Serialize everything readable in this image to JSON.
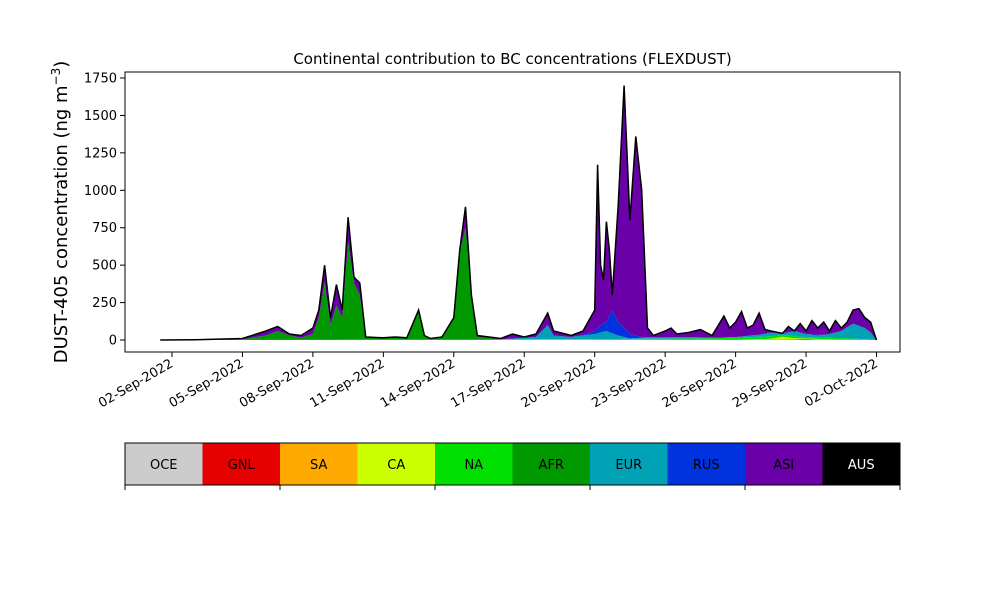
{
  "chart_data": {
    "type": "area",
    "stacked": true,
    "title": "Continental contribution to BC concentrations (FLEXDUST)",
    "ylabel_main": "DUST-405 concentration (ng m",
    "ylabel_sup": "−3",
    "ylabel_close": ")",
    "ylim": [
      -80,
      1790
    ],
    "yticks": [
      0,
      250,
      500,
      750,
      1000,
      1250,
      1500,
      1750
    ],
    "ytick_labels": [
      "0",
      "250",
      "500",
      "750",
      "1000",
      "1250",
      "1500",
      "1750"
    ],
    "xlim": [
      "2022-08-31",
      "2022-10-03"
    ],
    "xticks": [
      "2022-09-02",
      "2022-09-05",
      "2022-09-08",
      "2022-09-11",
      "2022-09-14",
      "2022-09-17",
      "2022-09-20",
      "2022-09-23",
      "2022-09-26",
      "2022-09-29",
      "2022-10-02"
    ],
    "xtick_labels": [
      "02-Sep-2022",
      "05-Sep-2022",
      "08-Sep-2022",
      "11-Sep-2022",
      "14-Sep-2022",
      "17-Sep-2022",
      "20-Sep-2022",
      "23-Sep-2022",
      "26-Sep-2022",
      "29-Sep-2022",
      "02-Oct-2022"
    ],
    "series": [
      {
        "name": "OCE",
        "color": "#cccccc",
        "text_color": "#000000",
        "points": [
          [
            "2022-09-01T12:00",
            0
          ],
          [
            "2022-10-02T00:00",
            0
          ]
        ]
      },
      {
        "name": "GNL",
        "color": "#e60000",
        "text_color": "#000000",
        "points": [
          [
            "2022-09-01T12:00",
            0
          ],
          [
            "2022-09-24T00:00",
            0
          ],
          [
            "2022-09-28T00:00",
            2
          ],
          [
            "2022-09-29T00:00",
            4
          ],
          [
            "2022-09-29T12:00",
            2
          ],
          [
            "2022-10-02T00:00",
            0
          ]
        ]
      },
      {
        "name": "SA",
        "color": "#ffaa00",
        "text_color": "#000000",
        "points": [
          [
            "2022-09-01T12:00",
            0
          ],
          [
            "2022-09-26T00:00",
            0
          ],
          [
            "2022-09-28T00:00",
            4
          ],
          [
            "2022-09-29T00:00",
            6
          ],
          [
            "2022-09-30T00:00",
            3
          ],
          [
            "2022-10-02T00:00",
            0
          ]
        ]
      },
      {
        "name": "CA",
        "color": "#ccff00",
        "text_color": "#000000",
        "points": [
          [
            "2022-09-01T12:00",
            0
          ],
          [
            "2022-09-26T00:00",
            2
          ],
          [
            "2022-09-27T12:00",
            8
          ],
          [
            "2022-09-28T00:00",
            22
          ],
          [
            "2022-09-28T12:00",
            12
          ],
          [
            "2022-09-29T00:00",
            10
          ],
          [
            "2022-09-30T00:00",
            5
          ],
          [
            "2022-10-02T00:00",
            0
          ]
        ]
      },
      {
        "name": "NA",
        "color": "#00e000",
        "text_color": "#000000",
        "points": [
          [
            "2022-09-01T12:00",
            0
          ],
          [
            "2022-09-15T00:00",
            2
          ],
          [
            "2022-09-18T00:00",
            5
          ],
          [
            "2022-09-20T00:00",
            6
          ],
          [
            "2022-09-22T00:00",
            8
          ],
          [
            "2022-09-24T00:00",
            10
          ],
          [
            "2022-09-26T00:00",
            15
          ],
          [
            "2022-09-27T12:00",
            25
          ],
          [
            "2022-09-28T00:00",
            35
          ],
          [
            "2022-09-28T12:00",
            25
          ],
          [
            "2022-09-29T00:00",
            20
          ],
          [
            "2022-09-30T00:00",
            15
          ],
          [
            "2022-10-01T00:00",
            10
          ],
          [
            "2022-10-02T00:00",
            0
          ]
        ]
      },
      {
        "name": "AFR",
        "color": "#009900",
        "text_color": "#000000",
        "points": [
          [
            "2022-09-01T12:00",
            0
          ],
          [
            "2022-09-03T00:00",
            2
          ],
          [
            "2022-09-05T00:00",
            5
          ],
          [
            "2022-09-06T00:00",
            30
          ],
          [
            "2022-09-06T12:00",
            60
          ],
          [
            "2022-09-07T00:00",
            30
          ],
          [
            "2022-09-07T12:00",
            15
          ],
          [
            "2022-09-08T00:00",
            40
          ],
          [
            "2022-09-08T06:00",
            150
          ],
          [
            "2022-09-08T12:00",
            380
          ],
          [
            "2022-09-08T18:00",
            100
          ],
          [
            "2022-09-09T00:00",
            230
          ],
          [
            "2022-09-09T06:00",
            150
          ],
          [
            "2022-09-09T12:00",
            650
          ],
          [
            "2022-09-09T18:00",
            380
          ],
          [
            "2022-09-10T00:00",
            300
          ],
          [
            "2022-09-10T06:00",
            20
          ],
          [
            "2022-09-11T00:00",
            15
          ],
          [
            "2022-09-11T12:00",
            20
          ],
          [
            "2022-09-12T00:00",
            15
          ],
          [
            "2022-09-12T12:00",
            200
          ],
          [
            "2022-09-12T18:00",
            30
          ],
          [
            "2022-09-13T00:00",
            10
          ],
          [
            "2022-09-13T12:00",
            20
          ],
          [
            "2022-09-14T00:00",
            150
          ],
          [
            "2022-09-14T06:00",
            580
          ],
          [
            "2022-09-14T12:00",
            750
          ],
          [
            "2022-09-14T18:00",
            300
          ],
          [
            "2022-09-15T00:00",
            20
          ],
          [
            "2022-09-16T00:00",
            5
          ],
          [
            "2022-09-17T00:00",
            3
          ],
          [
            "2022-09-18T00:00",
            5
          ],
          [
            "2022-09-20T00:00",
            5
          ],
          [
            "2022-09-22T00:00",
            5
          ],
          [
            "2022-09-24T00:00",
            5
          ],
          [
            "2022-09-26T00:00",
            5
          ],
          [
            "2022-09-28T00:00",
            5
          ],
          [
            "2022-10-02T00:00",
            0
          ]
        ]
      },
      {
        "name": "EUR",
        "color": "#00a3b5",
        "text_color": "#000000",
        "points": [
          [
            "2022-09-01T12:00",
            0
          ],
          [
            "2022-09-10T00:00",
            5
          ],
          [
            "2022-09-12T00:00",
            3
          ],
          [
            "2022-09-14T00:00",
            10
          ],
          [
            "2022-09-16T00:00",
            5
          ],
          [
            "2022-09-16T12:00",
            10
          ],
          [
            "2022-09-17T12:00",
            20
          ],
          [
            "2022-09-18T00:00",
            100
          ],
          [
            "2022-09-18T06:00",
            30
          ],
          [
            "2022-09-19T00:00",
            20
          ],
          [
            "2022-09-20T00:00",
            40
          ],
          [
            "2022-09-20T12:00",
            60
          ],
          [
            "2022-09-21T00:00",
            30
          ],
          [
            "2022-09-21T12:00",
            10
          ],
          [
            "2022-09-22T00:00",
            15
          ],
          [
            "2022-09-24T00:00",
            20
          ],
          [
            "2022-09-25T00:00",
            15
          ],
          [
            "2022-09-26T00:00",
            20
          ],
          [
            "2022-09-27T00:00",
            35
          ],
          [
            "2022-09-27T12:00",
            50
          ],
          [
            "2022-09-28T00:00",
            45
          ],
          [
            "2022-09-28T12:00",
            60
          ],
          [
            "2022-09-29T00:00",
            40
          ],
          [
            "2022-09-29T12:00",
            30
          ],
          [
            "2022-09-30T00:00",
            40
          ],
          [
            "2022-09-30T12:00",
            60
          ],
          [
            "2022-10-01T00:00",
            110
          ],
          [
            "2022-10-01T12:00",
            80
          ],
          [
            "2022-10-01T18:00",
            50
          ],
          [
            "2022-10-02T00:00",
            0
          ]
        ]
      },
      {
        "name": "RUS",
        "color": "#0033dd",
        "text_color": "#000000",
        "points": [
          [
            "2022-09-01T12:00",
            0
          ],
          [
            "2022-09-16T00:00",
            5
          ],
          [
            "2022-09-18T00:00",
            10
          ],
          [
            "2022-09-19T00:00",
            10
          ],
          [
            "2022-09-20T00:00",
            60
          ],
          [
            "2022-09-20T06:00",
            100
          ],
          [
            "2022-09-20T12:00",
            120
          ],
          [
            "2022-09-20T18:00",
            200
          ],
          [
            "2022-09-21T00:00",
            120
          ],
          [
            "2022-09-21T12:00",
            40
          ],
          [
            "2022-09-22T00:00",
            20
          ],
          [
            "2022-09-23T00:00",
            15
          ],
          [
            "2022-09-24T00:00",
            15
          ],
          [
            "2022-09-25T00:00",
            10
          ],
          [
            "2022-09-26T00:00",
            10
          ],
          [
            "2022-09-27T00:00",
            15
          ],
          [
            "2022-09-28T00:00",
            20
          ],
          [
            "2022-09-29T00:00",
            40
          ],
          [
            "2022-09-30T00:00",
            30
          ],
          [
            "2022-10-01T00:00",
            60
          ],
          [
            "2022-10-01T12:00",
            50
          ],
          [
            "2022-10-02T00:00",
            0
          ]
        ]
      },
      {
        "name": "ASI",
        "color": "#6a00a8",
        "text_color": "#000000",
        "points": [
          [
            "2022-09-01T12:00",
            0
          ],
          [
            "2022-09-03T00:00",
            2
          ],
          [
            "2022-09-05T00:00",
            10
          ],
          [
            "2022-09-06T00:00",
            60
          ],
          [
            "2022-09-06T12:00",
            90
          ],
          [
            "2022-09-07T00:00",
            40
          ],
          [
            "2022-09-07T12:00",
            30
          ],
          [
            "2022-09-08T00:00",
            80
          ],
          [
            "2022-09-08T06:00",
            200
          ],
          [
            "2022-09-08T12:00",
            500
          ],
          [
            "2022-09-08T18:00",
            150
          ],
          [
            "2022-09-09T00:00",
            370
          ],
          [
            "2022-09-09T06:00",
            200
          ],
          [
            "2022-09-09T12:00",
            820
          ],
          [
            "2022-09-09T18:00",
            420
          ],
          [
            "2022-09-10T00:00",
            380
          ],
          [
            "2022-09-10T06:00",
            20
          ],
          [
            "2022-09-11T00:00",
            15
          ],
          [
            "2022-09-11T12:00",
            20
          ],
          [
            "2022-09-12T00:00",
            15
          ],
          [
            "2022-09-12T12:00",
            200
          ],
          [
            "2022-09-12T18:00",
            30
          ],
          [
            "2022-09-13T00:00",
            10
          ],
          [
            "2022-09-13T12:00",
            20
          ],
          [
            "2022-09-14T00:00",
            150
          ],
          [
            "2022-09-14T06:00",
            600
          ],
          [
            "2022-09-14T12:00",
            890
          ],
          [
            "2022-09-14T18:00",
            300
          ],
          [
            "2022-09-15T00:00",
            30
          ],
          [
            "2022-09-16T00:00",
            10
          ],
          [
            "2022-09-16T12:00",
            40
          ],
          [
            "2022-09-17T00:00",
            20
          ],
          [
            "2022-09-17T12:00",
            40
          ],
          [
            "2022-09-18T00:00",
            180
          ],
          [
            "2022-09-18T06:00",
            60
          ],
          [
            "2022-09-18T12:00",
            50
          ],
          [
            "2022-09-19T00:00",
            30
          ],
          [
            "2022-09-19T12:00",
            60
          ],
          [
            "2022-09-20T00:00",
            200
          ],
          [
            "2022-09-20T03:00",
            1170
          ],
          [
            "2022-09-20T06:00",
            500
          ],
          [
            "2022-09-20T09:00",
            400
          ],
          [
            "2022-09-20T12:00",
            790
          ],
          [
            "2022-09-20T15:00",
            600
          ],
          [
            "2022-09-20T18:00",
            300
          ],
          [
            "2022-09-21T00:00",
            900
          ],
          [
            "2022-09-21T06:00",
            1700
          ],
          [
            "2022-09-21T12:00",
            800
          ],
          [
            "2022-09-21T18:00",
            1360
          ],
          [
            "2022-09-22T00:00",
            1000
          ],
          [
            "2022-09-22T06:00",
            80
          ],
          [
            "2022-09-22T12:00",
            30
          ],
          [
            "2022-09-23T00:00",
            60
          ],
          [
            "2022-09-23T06:00",
            80
          ],
          [
            "2022-09-23T12:00",
            40
          ],
          [
            "2022-09-24T00:00",
            50
          ],
          [
            "2022-09-24T12:00",
            70
          ],
          [
            "2022-09-25T00:00",
            30
          ],
          [
            "2022-09-25T12:00",
            160
          ],
          [
            "2022-09-25T18:00",
            80
          ],
          [
            "2022-09-26T00:00",
            120
          ],
          [
            "2022-09-26T06:00",
            190
          ],
          [
            "2022-09-26T12:00",
            80
          ],
          [
            "2022-09-26T18:00",
            100
          ],
          [
            "2022-09-27T00:00",
            180
          ],
          [
            "2022-09-27T06:00",
            70
          ],
          [
            "2022-09-27T12:00",
            60
          ],
          [
            "2022-09-28T00:00",
            40
          ],
          [
            "2022-09-28T06:00",
            90
          ],
          [
            "2022-09-28T12:00",
            50
          ],
          [
            "2022-09-28T18:00",
            110
          ],
          [
            "2022-09-29T00:00",
            60
          ],
          [
            "2022-09-29T06:00",
            130
          ],
          [
            "2022-09-29T12:00",
            80
          ],
          [
            "2022-09-29T18:00",
            120
          ],
          [
            "2022-09-30T00:00",
            60
          ],
          [
            "2022-09-30T06:00",
            130
          ],
          [
            "2022-09-30T12:00",
            80
          ],
          [
            "2022-09-30T18:00",
            120
          ],
          [
            "2022-10-01T00:00",
            200
          ],
          [
            "2022-10-01T06:00",
            210
          ],
          [
            "2022-10-01T12:00",
            150
          ],
          [
            "2022-10-01T18:00",
            120
          ],
          [
            "2022-10-02T00:00",
            0
          ]
        ]
      },
      {
        "name": "AUS",
        "color": "#000000",
        "text_color": "#ffffff",
        "points": [
          [
            "2022-09-01T12:00",
            0
          ],
          [
            "2022-10-02T00:00",
            0
          ]
        ]
      }
    ]
  }
}
